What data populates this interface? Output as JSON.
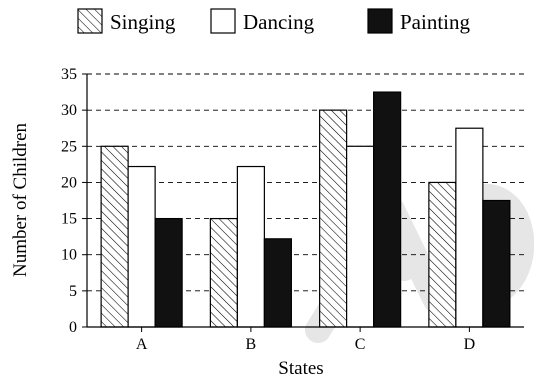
{
  "chart_data": {
    "type": "bar",
    "title": "",
    "xlabel": "States",
    "ylabel": "Number of Children",
    "categories": [
      "A",
      "B",
      "C",
      "D"
    ],
    "ylim": [
      0,
      35
    ],
    "yticks": [
      0,
      5,
      10,
      15,
      20,
      25,
      30,
      35
    ],
    "grid": "horizontal-dashed",
    "legend_position": "top",
    "series": [
      {
        "name": "Singing",
        "values": [
          25,
          15,
          30,
          20
        ],
        "fill": "hatched",
        "color": "#ffffff"
      },
      {
        "name": "Dancing",
        "values": [
          22.2,
          22.2,
          25,
          27.5
        ],
        "fill": "solid",
        "color": "#ffffff"
      },
      {
        "name": "Painting",
        "values": [
          15,
          12.2,
          32.5,
          17.5
        ],
        "fill": "solid",
        "color": "#111111"
      }
    ]
  }
}
